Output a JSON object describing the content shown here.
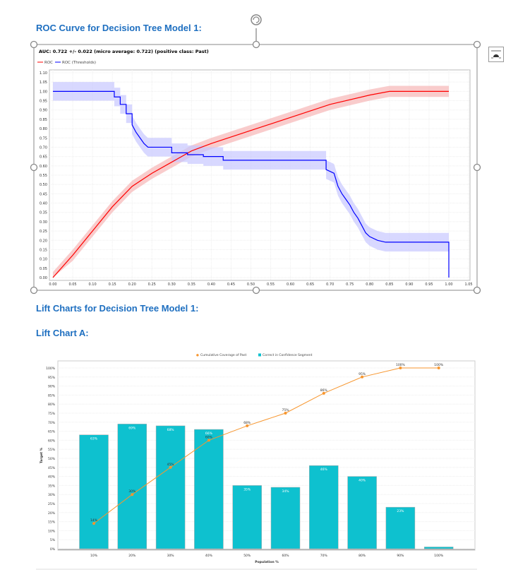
{
  "headings": {
    "roc": "ROC Curve for Decision Tree Model 1:",
    "lift": "Lift Charts for Decision Tree Model 1:",
    "lift_a": "Lift Chart A:"
  },
  "chart_data": [
    {
      "type": "line",
      "title": "AUC: 0.722 +/- 0.022 (micro average: 0.722) (positive class: Past)",
      "xlim": [
        0,
        1.05
      ],
      "ylim": [
        0,
        1.1
      ],
      "grid": true,
      "legend_placement": "top-left",
      "x_ticks": [
        "0.00",
        "0.05",
        "0.10",
        "0.15",
        "0.20",
        "0.25",
        "0.30",
        "0.35",
        "0.40",
        "0.45",
        "0.50",
        "0.55",
        "0.60",
        "0.65",
        "0.70",
        "0.75",
        "0.80",
        "0.85",
        "0.90",
        "0.95",
        "1.00",
        "1.05"
      ],
      "y_ticks": [
        "0.00",
        "0.05",
        "0.10",
        "0.15",
        "0.20",
        "0.25",
        "0.30",
        "0.35",
        "0.40",
        "0.45",
        "0.50",
        "0.55",
        "0.60",
        "0.65",
        "0.70",
        "0.75",
        "0.80",
        "0.85",
        "0.90",
        "0.95",
        "1.00",
        "1.05",
        "1.10"
      ],
      "series": [
        {
          "name": "ROC",
          "color": "#ff0000",
          "band_color": "#f7b6b6",
          "points": [
            [
              0,
              0
            ],
            [
              0.05,
              0.12
            ],
            [
              0.1,
              0.25
            ],
            [
              0.15,
              0.38
            ],
            [
              0.2,
              0.49
            ],
            [
              0.25,
              0.56
            ],
            [
              0.3,
              0.62
            ],
            [
              0.35,
              0.68
            ],
            [
              0.4,
              0.72
            ],
            [
              0.5,
              0.79
            ],
            [
              0.6,
              0.86
            ],
            [
              0.7,
              0.93
            ],
            [
              0.8,
              0.98
            ],
            [
              0.85,
              1.0
            ],
            [
              1.0,
              1.0
            ]
          ]
        },
        {
          "name": "ROC (Thresholds)",
          "color": "#0000ff",
          "band_color": "#c8c8ff",
          "points": [
            [
              0,
              1.0
            ],
            [
              0.155,
              1.0
            ],
            [
              0.155,
              0.97
            ],
            [
              0.17,
              0.97
            ],
            [
              0.17,
              0.93
            ],
            [
              0.185,
              0.93
            ],
            [
              0.185,
              0.88
            ],
            [
              0.2,
              0.88
            ],
            [
              0.2,
              0.82
            ],
            [
              0.21,
              0.78
            ],
            [
              0.22,
              0.75
            ],
            [
              0.23,
              0.72
            ],
            [
              0.24,
              0.7
            ],
            [
              0.3,
              0.7
            ],
            [
              0.3,
              0.67
            ],
            [
              0.34,
              0.67
            ],
            [
              0.34,
              0.66
            ],
            [
              0.38,
              0.66
            ],
            [
              0.38,
              0.65
            ],
            [
              0.43,
              0.65
            ],
            [
              0.43,
              0.63
            ],
            [
              0.69,
              0.63
            ],
            [
              0.69,
              0.58
            ],
            [
              0.71,
              0.56
            ],
            [
              0.72,
              0.49
            ],
            [
              0.73,
              0.45
            ],
            [
              0.74,
              0.42
            ],
            [
              0.75,
              0.39
            ],
            [
              0.76,
              0.35
            ],
            [
              0.77,
              0.32
            ],
            [
              0.78,
              0.28
            ],
            [
              0.79,
              0.24
            ],
            [
              0.8,
              0.22
            ],
            [
              0.82,
              0.2
            ],
            [
              0.84,
              0.19
            ],
            [
              1.0,
              0.19
            ],
            [
              1.0,
              0.0
            ]
          ]
        }
      ]
    },
    {
      "type": "bar",
      "xlabel": "Population %",
      "ylabel": "Target %",
      "ylim": [
        0,
        100
      ],
      "grid": true,
      "legend_placement": "top",
      "categories": [
        "10%",
        "20%",
        "30%",
        "40%",
        "50%",
        "60%",
        "70%",
        "80%",
        "90%",
        "100%"
      ],
      "y_ticks": [
        "0%",
        "5%",
        "10%",
        "15%",
        "20%",
        "25%",
        "30%",
        "35%",
        "40%",
        "45%",
        "50%",
        "55%",
        "60%",
        "65%",
        "70%",
        "75%",
        "80%",
        "85%",
        "90%",
        "95%",
        "100%"
      ],
      "series": [
        {
          "name": "Correct in Confidence Segment",
          "kind": "bar",
          "color": "#0ec1cf",
          "values": [
            63,
            69,
            68,
            66,
            35,
            34,
            46,
            40,
            23,
            1
          ],
          "labels": [
            "63%",
            "69%",
            "68%",
            "66%",
            "35%",
            "34%",
            "46%",
            "40%",
            "23%",
            ""
          ]
        },
        {
          "name": "Cumulative Coverage of Past",
          "kind": "line",
          "color": "#f7962e",
          "values": [
            14,
            30,
            45,
            60,
            68,
            75,
            86,
            95,
            100,
            100
          ],
          "labels": [
            "14%",
            "30%",
            "45%",
            "60%",
            "68%",
            "75%",
            "86%",
            "95%",
            "100%",
            "100%"
          ]
        }
      ]
    }
  ]
}
